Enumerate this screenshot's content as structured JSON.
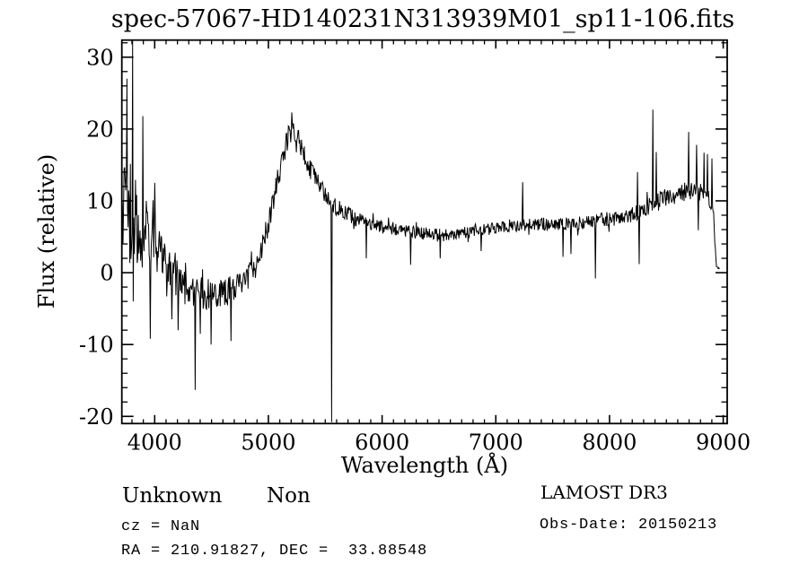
{
  "figure": {
    "title": "spec-57067-HD140231N313939M01_sp11-106.fits",
    "background": "#ffffff",
    "line_color": "#000000"
  },
  "axes": {
    "xlabel": "Wavelength (Å)",
    "ylabel": "Flux (relative)",
    "x_ticks": [
      4000,
      5000,
      6000,
      7000,
      8000,
      9000
    ],
    "y_ticks": [
      -20,
      -10,
      0,
      10,
      20,
      30
    ],
    "x_minor_step": 100,
    "y_minor_step": 2,
    "xlim": [
      3711,
      9035
    ],
    "ylim": [
      -21.0,
      32.38
    ]
  },
  "annotations": {
    "class_name": "Unknown",
    "subclass": "Non",
    "survey": "LAMOST DR3",
    "cz_line": "cz = NaN",
    "obsdate_line": "Obs-Date: 20150213",
    "radec_line": "RA = 210.91827, DEC =  33.88548"
  },
  "chart_data": {
    "type": "line",
    "title": "spec-57067-HD140231N313939M01_sp11-106.fits",
    "xlabel": "Wavelength (Å)",
    "ylabel": "Flux (relative)",
    "x_ticks": [
      4000,
      5000,
      6000,
      7000,
      8000,
      9000
    ],
    "y_ticks": [
      -20,
      -10,
      0,
      10,
      20,
      30
    ],
    "xlim": [
      3711,
      9035
    ],
    "ylim": [
      -21.0,
      32.38
    ],
    "grid": false,
    "legend": false,
    "x_start": 3711,
    "x_end": 8970,
    "x_step": 5,
    "noise_seed": 20150213,
    "envelope_points": [
      [
        3711,
        9.0,
        10.0
      ],
      [
        3760,
        9.0,
        12.0
      ],
      [
        3810,
        7.0,
        14.0
      ],
      [
        3860,
        6.5,
        8.0
      ],
      [
        3920,
        6.0,
        7.0
      ],
      [
        3980,
        4.0,
        6.0
      ],
      [
        4050,
        2.5,
        5.0
      ],
      [
        4120,
        0.5,
        4.5
      ],
      [
        4200,
        -1.0,
        4.3
      ],
      [
        4280,
        -2.3,
        4.0
      ],
      [
        4360,
        -2.8,
        3.8
      ],
      [
        4450,
        -3.0,
        3.5
      ],
      [
        4540,
        -3.0,
        3.3
      ],
      [
        4630,
        -2.7,
        3.2
      ],
      [
        4720,
        -2.0,
        3.0
      ],
      [
        4800,
        -1.0,
        2.9
      ],
      [
        4870,
        0.5,
        2.8
      ],
      [
        4930,
        3.0,
        2.8
      ],
      [
        5000,
        7.0,
        3.0
      ],
      [
        5060,
        11.0,
        3.0
      ],
      [
        5120,
        15.5,
        2.8
      ],
      [
        5170,
        18.8,
        2.5
      ],
      [
        5230,
        19.6,
        2.5
      ],
      [
        5290,
        17.5,
        2.4
      ],
      [
        5360,
        14.5,
        2.3
      ],
      [
        5440,
        12.3,
        2.2
      ],
      [
        5520,
        10.5,
        2.0
      ],
      [
        5600,
        9.0,
        1.8
      ],
      [
        5700,
        8.0,
        1.7
      ],
      [
        5800,
        7.3,
        1.6
      ],
      [
        5900,
        6.7,
        1.5
      ],
      [
        6000,
        6.3,
        1.5
      ],
      [
        6100,
        6.1,
        1.5
      ],
      [
        6200,
        5.8,
        1.4
      ],
      [
        6300,
        5.6,
        1.4
      ],
      [
        6400,
        5.4,
        1.4
      ],
      [
        6500,
        5.2,
        1.5
      ],
      [
        6600,
        5.3,
        1.4
      ],
      [
        6700,
        5.5,
        1.4
      ],
      [
        6800,
        5.7,
        1.4
      ],
      [
        6900,
        5.9,
        1.4
      ],
      [
        7000,
        6.2,
        1.4
      ],
      [
        7100,
        6.4,
        1.4
      ],
      [
        7200,
        6.6,
        1.4
      ],
      [
        7300,
        6.7,
        1.4
      ],
      [
        7400,
        6.8,
        1.5
      ],
      [
        7500,
        6.8,
        1.6
      ],
      [
        7600,
        6.7,
        1.7
      ],
      [
        7700,
        6.9,
        1.5
      ],
      [
        7800,
        7.1,
        1.5
      ],
      [
        7900,
        7.3,
        1.6
      ],
      [
        8000,
        7.5,
        1.6
      ],
      [
        8100,
        7.8,
        1.7
      ],
      [
        8200,
        8.1,
        1.8
      ],
      [
        8300,
        8.7,
        1.9
      ],
      [
        8380,
        9.5,
        2.0
      ],
      [
        8450,
        10.3,
        1.9
      ],
      [
        8550,
        10.6,
        2.0
      ],
      [
        8650,
        11.2,
        2.1
      ],
      [
        8750,
        11.4,
        2.2
      ],
      [
        8850,
        11.0,
        2.2
      ],
      [
        8915,
        8.5,
        1.5
      ],
      [
        8928,
        4.0,
        1.0
      ],
      [
        8940,
        0.8,
        0.3
      ],
      [
        8970,
        0.6,
        0.2
      ]
    ],
    "spikes": [
      [
        3755,
        27.0
      ],
      [
        3808,
        32.4
      ],
      [
        3812,
        -4.0
      ],
      [
        3895,
        21.8
      ],
      [
        3962,
        -9.2
      ],
      [
        4000,
        12.5
      ],
      [
        4150,
        -6.5
      ],
      [
        4205,
        -8.0
      ],
      [
        4355,
        -16.3
      ],
      [
        4400,
        -8.5
      ],
      [
        4495,
        -10.0
      ],
      [
        4670,
        -9.5
      ],
      [
        5206,
        22.3
      ],
      [
        5556,
        -20.8
      ],
      [
        5861,
        2.0
      ],
      [
        6249,
        1.1
      ],
      [
        6511,
        2.0
      ],
      [
        6871,
        3.0
      ],
      [
        7236,
        12.6
      ],
      [
        7591,
        2.2
      ],
      [
        7661,
        2.6
      ],
      [
        7876,
        -0.8
      ],
      [
        8246,
        14.0
      ],
      [
        8259,
        1.2
      ],
      [
        8380,
        22.7
      ],
      [
        8411,
        16.8
      ],
      [
        8697,
        19.6
      ],
      [
        8767,
        17.8
      ],
      [
        8783,
        5.9
      ],
      [
        8830,
        16.7
      ],
      [
        8862,
        16.5
      ],
      [
        8901,
        15.9
      ]
    ]
  }
}
